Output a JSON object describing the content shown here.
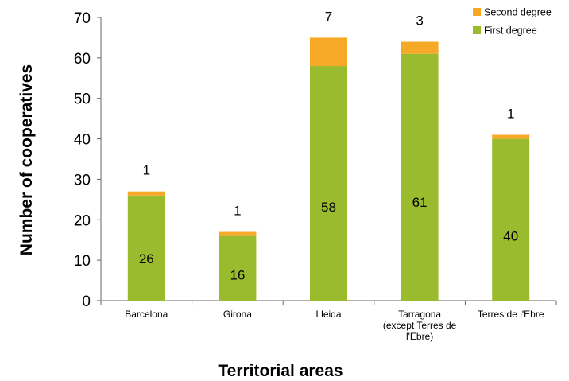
{
  "chart_data": {
    "type": "bar",
    "stacked": true,
    "title": "",
    "xlabel": "Territorial areas",
    "ylabel": "Number of cooperatives",
    "ylim": [
      0,
      70
    ],
    "yticks": [
      0,
      10,
      20,
      30,
      40,
      50,
      60,
      70
    ],
    "grid": false,
    "legend_position": "top-right",
    "categories": [
      [
        "Barcelona"
      ],
      [
        "Girona"
      ],
      [
        "Lleida"
      ],
      [
        "Tarragona",
        "(except Terres de",
        "l'Ebre)"
      ],
      [
        "Terres de l'Ebre"
      ]
    ],
    "series": [
      {
        "name": "First degree",
        "values": [
          26,
          16,
          58,
          61,
          40
        ],
        "color": "#9bbb2f"
      },
      {
        "name": "Second degree",
        "values": [
          1,
          1,
          7,
          3,
          1
        ],
        "color": "#f6a827"
      }
    ],
    "legend_order": [
      1,
      0
    ]
  }
}
